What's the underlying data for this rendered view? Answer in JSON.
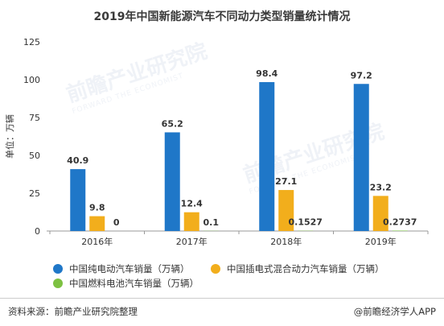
{
  "title": "2019年中国新能源汽车不同动力类型销量统计情况",
  "source": "资料来源：前瞻产业研究院整理",
  "credit": "@前瞻经济学人APP",
  "watermark": {
    "main": "前瞻产业研究院",
    "sub": "FORWARD THE ECONOMIST"
  },
  "colors": {
    "series": [
      "#1f77c8",
      "#f2ae1c",
      "#7dc142"
    ],
    "axis": "#999999",
    "text": "#333333"
  },
  "chart_data": {
    "type": "bar",
    "title": "2019年中国新能源汽车不同动力类型销量统计情况",
    "ylabel": "单位：万辆",
    "xlabel": "",
    "ylim": [
      0,
      125
    ],
    "yticks": [
      0,
      25,
      50,
      75,
      100,
      125
    ],
    "categories": [
      "2016年",
      "2017年",
      "2018年",
      "2019年"
    ],
    "series": [
      {
        "name": "中国纯电动汽车销量（万辆）",
        "values": [
          40.9,
          65.2,
          98.4,
          97.2
        ],
        "labels": [
          "40.9",
          "65.2",
          "98.4",
          "97.2"
        ]
      },
      {
        "name": "中国插电式混合动力汽车销量（万辆）",
        "values": [
          9.8,
          12.4,
          27.1,
          23.2
        ],
        "labels": [
          "9.8",
          "12.4",
          "27.1",
          "23.2"
        ]
      },
      {
        "name": "中国燃料电池汽车销量（万辆）",
        "values": [
          0,
          0.1,
          0.1527,
          0.2737
        ],
        "labels": [
          "0",
          "0.1",
          "0.1527",
          "0.2737"
        ]
      }
    ],
    "grid": false,
    "legend_position": "bottom"
  }
}
